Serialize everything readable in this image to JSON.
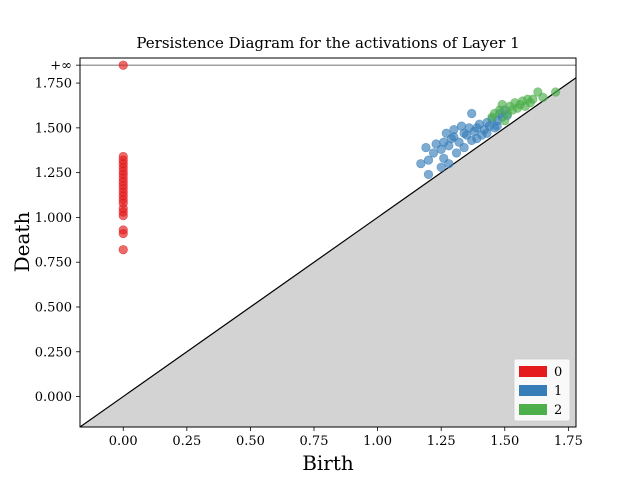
{
  "chart_data": {
    "type": "scatter",
    "title": "Persistence Diagram for the activations of Layer 1",
    "xlabel": "Birth",
    "ylabel": "Death",
    "xlim": [
      -0.17,
      1.78
    ],
    "ylim": [
      -0.17,
      1.89
    ],
    "infinity_value": 1.85,
    "infinity_label": "+∞",
    "x_ticks": [
      {
        "value": 0.0,
        "label": "0.00"
      },
      {
        "value": 0.25,
        "label": "0.25"
      },
      {
        "value": 0.5,
        "label": "0.50"
      },
      {
        "value": 0.75,
        "label": "0.75"
      },
      {
        "value": 1.0,
        "label": "1.00"
      },
      {
        "value": 1.25,
        "label": "1.25"
      },
      {
        "value": 1.5,
        "label": "1.50"
      },
      {
        "value": 1.75,
        "label": "1.75"
      }
    ],
    "y_ticks": [
      {
        "value": 0.0,
        "label": "0.000"
      },
      {
        "value": 0.25,
        "label": "0.250"
      },
      {
        "value": 0.5,
        "label": "0.500"
      },
      {
        "value": 0.75,
        "label": "0.750"
      },
      {
        "value": 1.0,
        "label": "1.000"
      },
      {
        "value": 1.25,
        "label": "1.250"
      },
      {
        "value": 1.5,
        "label": "1.500"
      },
      {
        "value": 1.75,
        "label": "1.750"
      }
    ],
    "grid": false,
    "legend_position": "bottom-right",
    "series": [
      {
        "name": "0",
        "color": "#e41a1c",
        "points": [
          [
            0,
            1.85
          ],
          [
            0,
            0.82
          ],
          [
            0,
            0.91
          ],
          [
            0,
            0.93
          ],
          [
            0,
            1.01
          ],
          [
            0,
            1.03
          ],
          [
            0,
            1.05
          ],
          [
            0,
            1.08
          ],
          [
            0,
            1.1
          ],
          [
            0,
            1.12
          ],
          [
            0,
            1.14
          ],
          [
            0,
            1.16
          ],
          [
            0,
            1.18
          ],
          [
            0,
            1.2
          ],
          [
            0,
            1.22
          ],
          [
            0,
            1.24
          ],
          [
            0,
            1.26
          ],
          [
            0,
            1.28
          ],
          [
            0,
            1.3
          ],
          [
            0,
            1.32
          ],
          [
            0,
            1.34
          ]
        ]
      },
      {
        "name": "1",
        "color": "#377eb8",
        "points": [
          [
            1.17,
            1.3
          ],
          [
            1.19,
            1.39
          ],
          [
            1.2,
            1.24
          ],
          [
            1.2,
            1.32
          ],
          [
            1.22,
            1.36
          ],
          [
            1.23,
            1.41
          ],
          [
            1.25,
            1.28
          ],
          [
            1.25,
            1.38
          ],
          [
            1.26,
            1.33
          ],
          [
            1.27,
            1.47
          ],
          [
            1.28,
            1.3
          ],
          [
            1.28,
            1.4
          ],
          [
            1.29,
            1.44
          ],
          [
            1.3,
            1.49
          ],
          [
            1.31,
            1.36
          ],
          [
            1.32,
            1.42
          ],
          [
            1.33,
            1.51
          ],
          [
            1.34,
            1.39
          ],
          [
            1.35,
            1.46
          ],
          [
            1.36,
            1.5
          ],
          [
            1.37,
            1.43
          ],
          [
            1.37,
            1.58
          ],
          [
            1.38,
            1.48
          ],
          [
            1.39,
            1.44
          ],
          [
            1.4,
            1.52
          ],
          [
            1.41,
            1.46
          ],
          [
            1.42,
            1.49
          ],
          [
            1.43,
            1.53
          ],
          [
            1.44,
            1.51
          ],
          [
            1.45,
            1.55
          ],
          [
            1.46,
            1.5
          ],
          [
            1.47,
            1.54
          ],
          [
            1.48,
            1.58
          ],
          [
            1.49,
            1.56
          ],
          [
            1.5,
            1.6
          ],
          [
            1.51,
            1.57
          ],
          [
            1.26,
            1.42
          ],
          [
            1.3,
            1.45
          ],
          [
            1.34,
            1.47
          ],
          [
            1.39,
            1.5
          ],
          [
            1.43,
            1.47
          ],
          [
            1.47,
            1.51
          ]
        ]
      },
      {
        "name": "2",
        "color": "#4daf4a",
        "points": [
          [
            1.45,
            1.56
          ],
          [
            1.48,
            1.6
          ],
          [
            1.49,
            1.63
          ],
          [
            1.51,
            1.58
          ],
          [
            1.52,
            1.62
          ],
          [
            1.53,
            1.6
          ],
          [
            1.54,
            1.64
          ],
          [
            1.55,
            1.61
          ],
          [
            1.56,
            1.63
          ],
          [
            1.57,
            1.65
          ],
          [
            1.58,
            1.62
          ],
          [
            1.59,
            1.66
          ],
          [
            1.6,
            1.64
          ],
          [
            1.61,
            1.66
          ],
          [
            1.63,
            1.7
          ],
          [
            1.65,
            1.67
          ],
          [
            1.7,
            1.7
          ],
          [
            1.5,
            1.54
          ],
          [
            1.46,
            1.58
          ]
        ]
      }
    ]
  }
}
